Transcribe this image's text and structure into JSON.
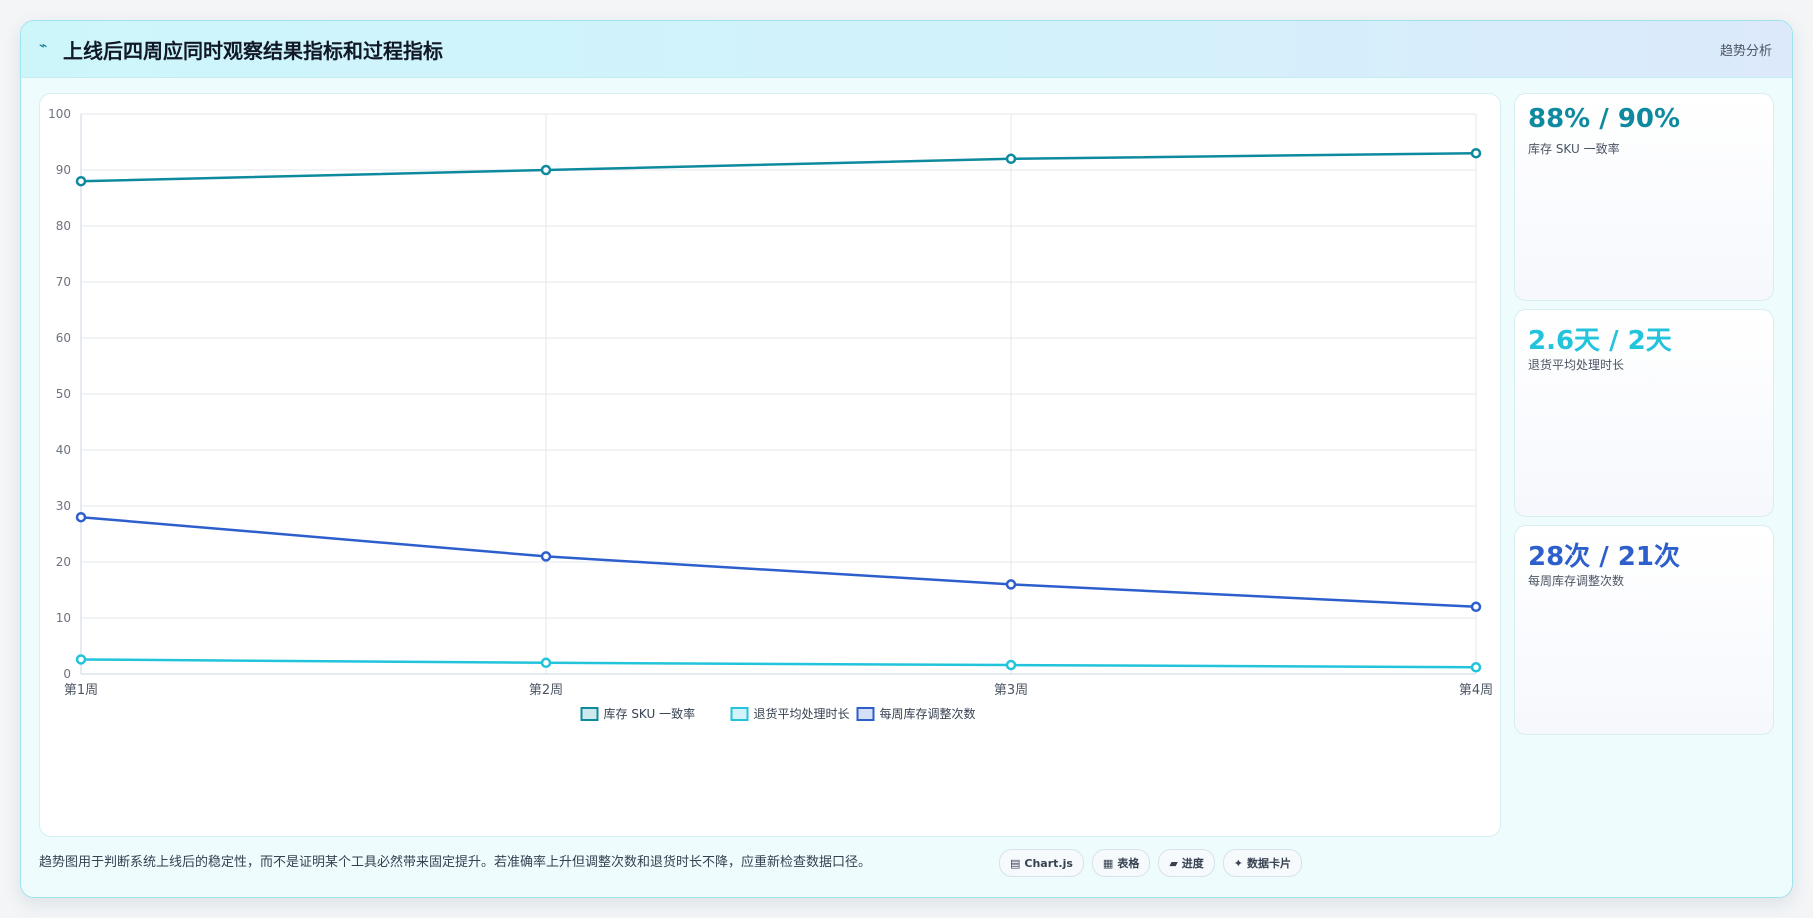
{
  "header": {
    "title": "上线后四周应同时观察结果指标和过程指标",
    "tag": "趋势分析"
  },
  "chart_data": {
    "type": "line",
    "title": "",
    "xlabel": "",
    "ylabel": "",
    "categories": [
      "第1周",
      "第2周",
      "第3周",
      "第4周"
    ],
    "ylim": [
      0,
      100
    ],
    "yticks": [
      0,
      10,
      20,
      30,
      40,
      50,
      60,
      70,
      80,
      90,
      100
    ],
    "grid": true,
    "legend_position": "bottom",
    "series": [
      {
        "name": "库存 SKU 一致率",
        "color": "#0e8a9e",
        "values": [
          88,
          90,
          92,
          93
        ]
      },
      {
        "name": "退货平均处理时长",
        "color": "#22c4dc",
        "values": [
          2.6,
          2.0,
          1.6,
          1.2
        ]
      },
      {
        "name": "每周库存调整次数",
        "color": "#2d5fcc",
        "values": [
          28,
          21,
          16,
          12
        ]
      }
    ]
  },
  "stats": [
    {
      "value": "88% / 90%",
      "label": "库存 SKU 一致率",
      "color": "#0e8a9e"
    },
    {
      "value": "2.6天 / 2天",
      "label": "退货平均处理时长",
      "color": "#22c4dc"
    },
    {
      "value": "28次 / 21次",
      "label": "每周库存调整次数",
      "color": "#2d5fcc"
    }
  ],
  "footer": {
    "note": "趋势图用于判断系统上线后的稳定性，而不是证明某个工具必然带来固定提升。若准确率上升但调整次数和退货时长不降，应重新检查数据口径。"
  },
  "chips": [
    {
      "icon": "▤",
      "icon_name": "chart-icon",
      "label": "Chart.js"
    },
    {
      "icon": "▦",
      "icon_name": "table-icon",
      "label": "表格"
    },
    {
      "icon": "▰",
      "icon_name": "progress-icon",
      "label": "进度"
    },
    {
      "icon": "✦",
      "icon_name": "sparkle-icon",
      "label": "数据卡片"
    }
  ]
}
